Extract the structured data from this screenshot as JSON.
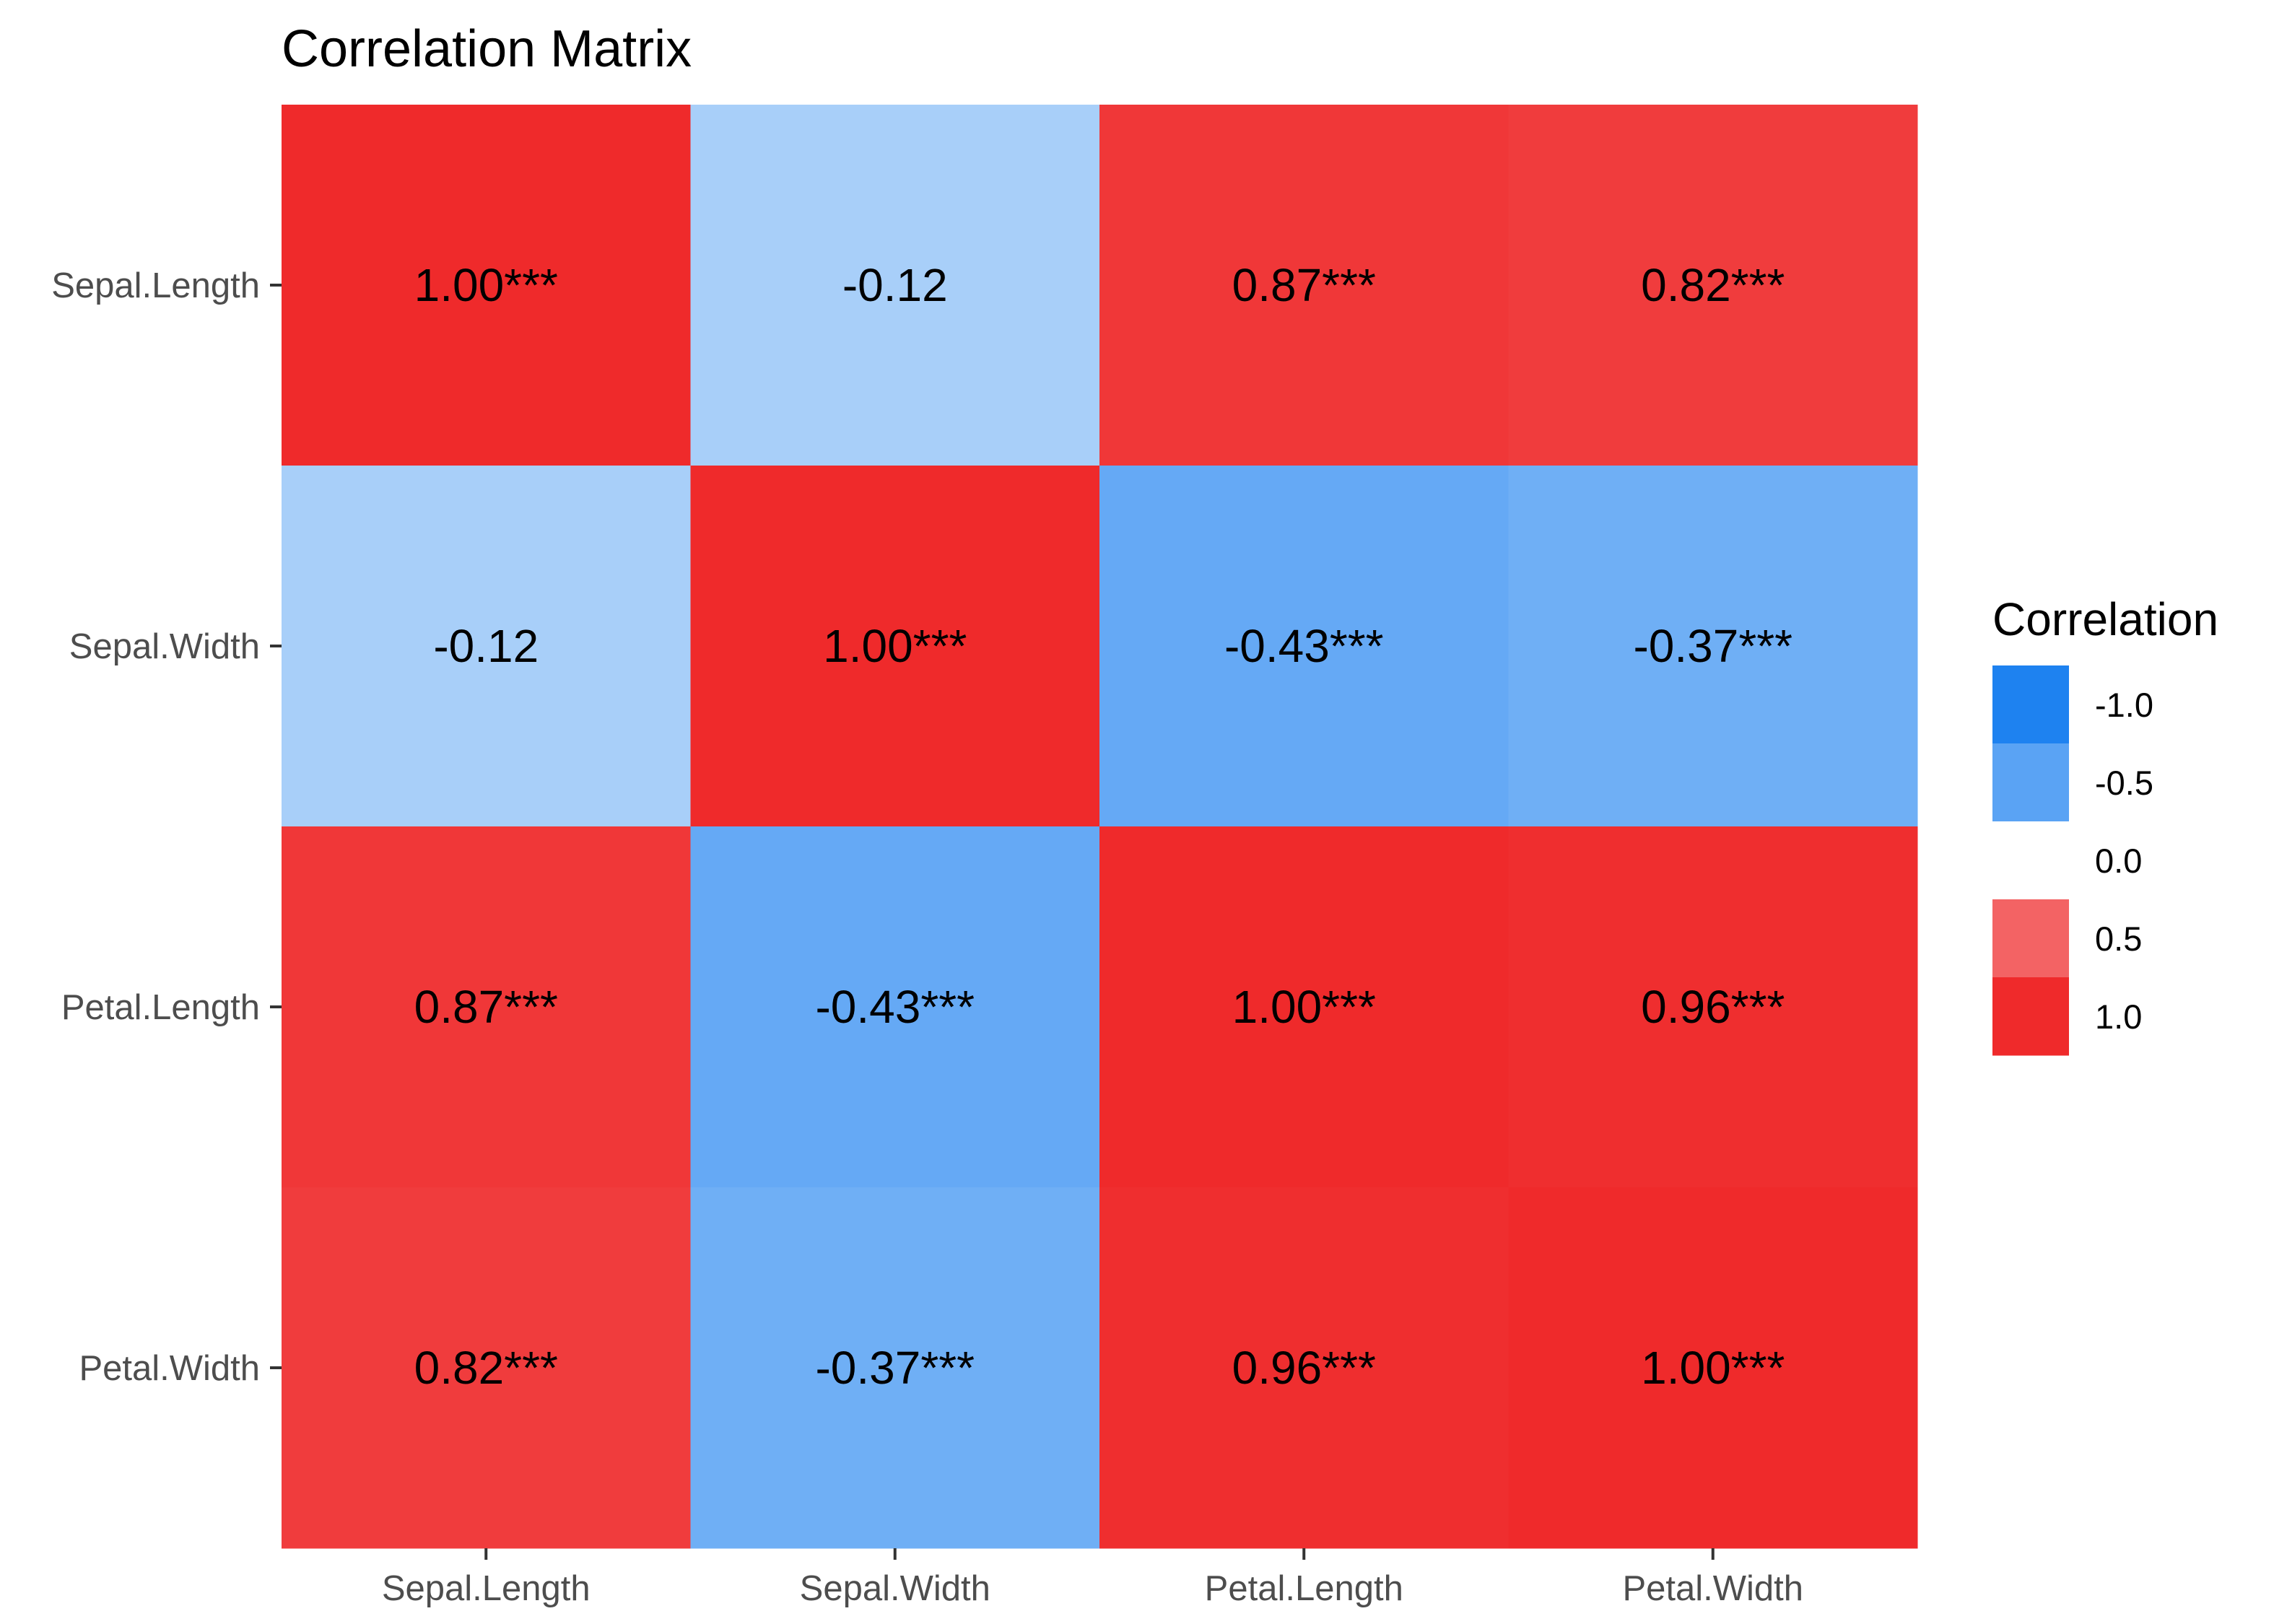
{
  "chart_data": {
    "type": "heatmap",
    "title": "Correlation Matrix",
    "xlabel": "",
    "ylabel": "",
    "x_categories": [
      "Sepal.Length",
      "Sepal.Width",
      "Petal.Length",
      "Petal.Width"
    ],
    "y_categories": [
      "Sepal.Length",
      "Sepal.Width",
      "Petal.Length",
      "Petal.Width"
    ],
    "values": [
      [
        1.0,
        -0.12,
        0.87,
        0.82
      ],
      [
        -0.12,
        1.0,
        -0.43,
        -0.37
      ],
      [
        0.87,
        -0.43,
        1.0,
        0.96
      ],
      [
        0.82,
        -0.37,
        0.96,
        1.0
      ]
    ],
    "labels": [
      [
        "1.00***",
        "-0.12",
        "0.87***",
        "0.82***"
      ],
      [
        "-0.12",
        "1.00***",
        "-0.43***",
        "-0.37***"
      ],
      [
        "0.87***",
        "-0.43***",
        "1.00***",
        "0.96***"
      ],
      [
        "0.82***",
        "-0.37***",
        "0.96***",
        "1.00***"
      ]
    ],
    "legend": {
      "title": "Correlation",
      "position": "right",
      "breaks": [
        -1.0,
        -0.5,
        0.0,
        0.5,
        1.0
      ],
      "break_labels": [
        "-1.0",
        "-0.5",
        "0.0",
        "0.5",
        "1.0"
      ]
    },
    "color_scale": {
      "low": "#1e82f0",
      "mid": "#ffffff",
      "high": "#ef2a2b",
      "limits": [
        -1,
        1
      ]
    }
  }
}
